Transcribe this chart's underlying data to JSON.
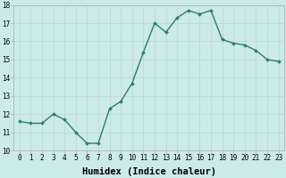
{
  "x": [
    0,
    1,
    2,
    3,
    4,
    5,
    6,
    7,
    8,
    9,
    10,
    11,
    12,
    13,
    14,
    15,
    16,
    17,
    18,
    19,
    20,
    21,
    22,
    23
  ],
  "y": [
    11.6,
    11.5,
    11.5,
    12.0,
    11.7,
    11.0,
    10.4,
    10.4,
    12.3,
    12.7,
    13.7,
    15.4,
    17.0,
    16.5,
    17.3,
    17.7,
    17.5,
    17.7,
    16.1,
    15.9,
    15.8,
    15.5,
    15.0,
    14.9
  ],
  "line_color": "#2e7d6e",
  "marker": "D",
  "marker_size": 2.0,
  "bg_color": "#cceae8",
  "grid_color": "#b8d8d5",
  "xlabel": "Humidex (Indice chaleur)",
  "xlim": [
    -0.5,
    23.5
  ],
  "ylim": [
    10,
    18
  ],
  "xticks": [
    0,
    1,
    2,
    3,
    4,
    5,
    6,
    7,
    8,
    9,
    10,
    11,
    12,
    13,
    14,
    15,
    16,
    17,
    18,
    19,
    20,
    21,
    22,
    23
  ],
  "yticks": [
    10,
    11,
    12,
    13,
    14,
    15,
    16,
    17,
    18
  ],
  "tick_fontsize": 5.5,
  "xlabel_fontsize": 7.5,
  "linewidth": 1.0
}
